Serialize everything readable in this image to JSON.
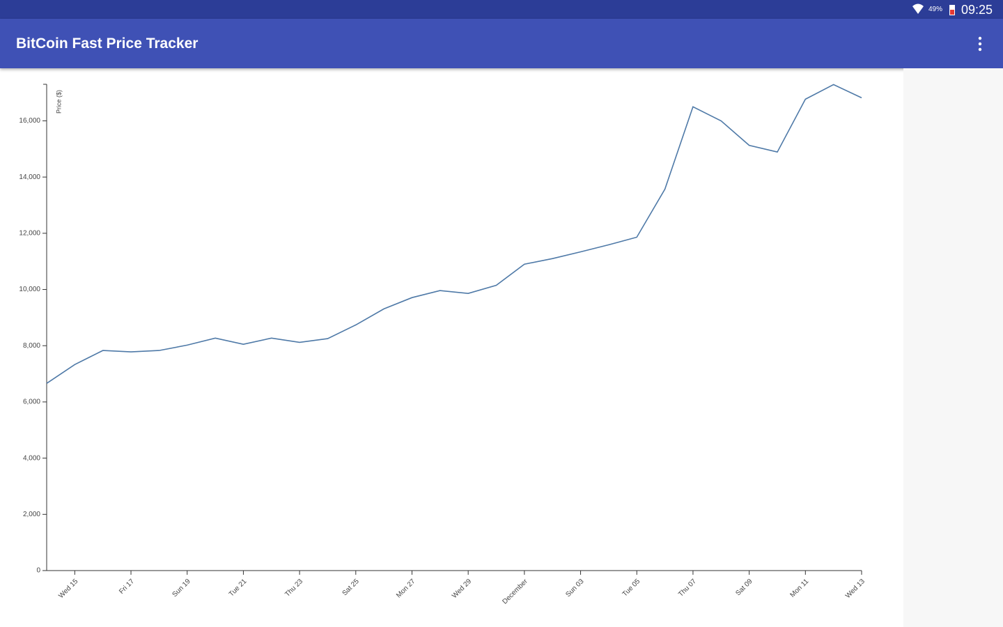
{
  "status_bar": {
    "battery": "49%",
    "time": "09:25"
  },
  "app_bar": {
    "title": "BitCoin Fast Price Tracker"
  },
  "chart_data": {
    "type": "line",
    "y_label": "Price ($)",
    "color": "#4e79a7",
    "categories": [
      null,
      "Wed 15",
      null,
      "Fri 17",
      null,
      "Sun 19",
      null,
      "Tue 21",
      null,
      "Thu 23",
      null,
      "Sat 25",
      null,
      "Mon 27",
      null,
      "Wed 29",
      null,
      "December",
      null,
      "Sun 03",
      null,
      "Tue 05",
      null,
      "Thu 07",
      null,
      "Sat 09",
      null,
      "Mon 11",
      null,
      "Wed 13"
    ],
    "values": [
      6660,
      7330,
      7830,
      7780,
      7830,
      8020,
      8270,
      8050,
      8270,
      8120,
      8250,
      8740,
      9310,
      9710,
      9960,
      9860,
      10150,
      10900,
      11100,
      11340,
      11590,
      11860,
      13570,
      16500,
      16000,
      15130,
      14890,
      16770,
      17290,
      16820
    ],
    "ylim": [
      0,
      17300
    ],
    "yticks": [
      0,
      {
        "value": 2000,
        "label": "2,000"
      },
      {
        "value": 4000,
        "label": "4,000"
      },
      {
        "value": 6000,
        "label": "6,000"
      },
      {
        "value": 8000,
        "label": "8,000"
      },
      {
        "value": 10000,
        "label": "10,000"
      },
      {
        "value": 12000,
        "label": "12,000"
      },
      {
        "value": 14000,
        "label": "14,000"
      },
      {
        "value": 16000,
        "label": "16,000"
      }
    ]
  }
}
